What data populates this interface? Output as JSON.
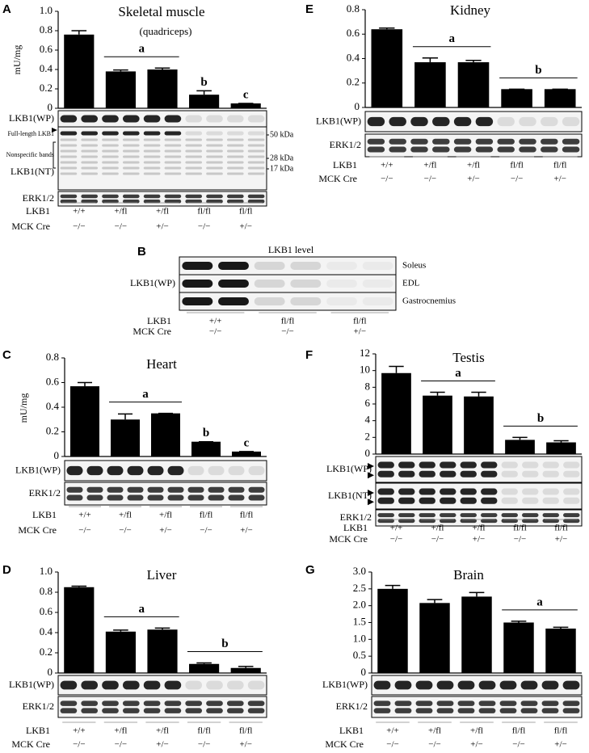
{
  "chart_data": [
    {
      "type": "bar",
      "panel": "A",
      "title": "Skeletal muscle",
      "subtitle": "(quadriceps)",
      "ylabel": "mU/mg",
      "color": "#000000",
      "values": [
        0.76,
        0.38,
        0.4,
        0.14,
        0.05
      ],
      "errors": [
        0.04,
        0.015,
        0.015,
        0.04,
        0
      ],
      "group_labels": [
        null,
        "a",
        "a",
        "b",
        "c"
      ],
      "ylim": [
        0,
        1
      ],
      "yticks": [
        0,
        0.2,
        0.4,
        0.6,
        0.8,
        {
          "value": 1,
          "label": "1.0"
        }
      ],
      "blots": [
        "LKB1(WP)",
        "LKB1(NT)",
        "ERK1/2"
      ],
      "blot_annotations": [
        "Full-length LKB1",
        "Nonspecific bands"
      ],
      "markers": [
        "50 kDa",
        "28 kDa",
        "17 kDa"
      ],
      "genotype_rows": [
        {
          "name": "LKB1",
          "values": [
            "+/+",
            "+/fl",
            "+/fl",
            "fl/fl",
            "fl/fl"
          ]
        },
        {
          "name": "MCK Cre",
          "values": [
            "−/−",
            "−/−",
            "+/−",
            "−/−",
            "+/−"
          ]
        }
      ]
    },
    {
      "type": "blot",
      "panel": "B",
      "title": "LKB1 level",
      "blots": [
        "LKB1(WP)"
      ],
      "tissues": [
        "Soleus",
        "EDL",
        "Gastrocnemius"
      ],
      "genotype_rows": [
        {
          "name": "LKB1",
          "values": [
            "+/+",
            "fl/fl",
            "fl/fl"
          ]
        },
        {
          "name": "MCK Cre",
          "values": [
            "−/−",
            "−/−",
            "+/−"
          ]
        }
      ]
    },
    {
      "type": "bar",
      "panel": "C",
      "title": "Heart",
      "ylabel": "mU/mg",
      "color": "#000000",
      "values": [
        0.57,
        0.3,
        0.35,
        0.12,
        0.04
      ],
      "errors": [
        0.03,
        0.045,
        0,
        0,
        0
      ],
      "group_labels": [
        null,
        "a",
        "a",
        "b",
        "c"
      ],
      "ylim": [
        0,
        0.8
      ],
      "yticks": [
        0,
        0.2,
        0.4,
        0.6,
        0.8
      ],
      "blots": [
        "LKB1(WP)",
        "ERK1/2"
      ],
      "genotype_rows": [
        {
          "name": "LKB1",
          "values": [
            "+/+",
            "+/fl",
            "+/fl",
            "fl/fl",
            "fl/fl"
          ]
        },
        {
          "name": "MCK Cre",
          "values": [
            "−/−",
            "−/−",
            "+/−",
            "−/−",
            "+/−"
          ]
        }
      ]
    },
    {
      "type": "bar",
      "panel": "D",
      "title": "Liver",
      "color": "#000000",
      "values": [
        0.85,
        0.41,
        0.43,
        0.09,
        0.05
      ],
      "errors": [
        0.01,
        0.015,
        0.015,
        0.01,
        0.015
      ],
      "group_labels": [
        null,
        "a",
        "a",
        "b",
        "b"
      ],
      "ylim": [
        0,
        1
      ],
      "yticks": [
        0,
        0.2,
        0.4,
        0.6,
        0.8,
        {
          "value": 1,
          "label": "1.0"
        }
      ],
      "blots": [
        "LKB1(WP)",
        "ERK1/2"
      ],
      "genotype_rows": [
        {
          "name": "LKB1",
          "values": [
            "+/+",
            "+/fl",
            "+/fl",
            "fl/fl",
            "fl/fl"
          ]
        },
        {
          "name": "MCK Cre",
          "values": [
            "−/−",
            "−/−",
            "+/−",
            "−/−",
            "+/−"
          ]
        }
      ]
    },
    {
      "type": "bar",
      "panel": "E",
      "title": "Kidney",
      "color": "#000000",
      "values": [
        0.64,
        0.37,
        0.37,
        0.15,
        0.15
      ],
      "errors": [
        0.01,
        0.035,
        0.015,
        0,
        0
      ],
      "group_labels": [
        null,
        "a",
        "a",
        "b",
        "b"
      ],
      "ylim": [
        0,
        0.8
      ],
      "yticks": [
        0,
        0.2,
        0.4,
        0.6,
        0.8
      ],
      "blots": [
        "LKB1(WP)",
        "ERK1/2"
      ],
      "genotype_rows": [
        {
          "name": "LKB1",
          "values": [
            "+/+",
            "+/fl",
            "+/fl",
            "fl/fl",
            "fl/fl"
          ]
        },
        {
          "name": "MCK Cre",
          "values": [
            "−/−",
            "−/−",
            "+/−",
            "−/−",
            "+/−"
          ]
        }
      ]
    },
    {
      "type": "bar",
      "panel": "F",
      "title": "Testis",
      "color": "#000000",
      "values": [
        9.7,
        7.0,
        6.9,
        1.7,
        1.4
      ],
      "errors": [
        0.8,
        0.4,
        0.5,
        0.3,
        0.2
      ],
      "group_labels": [
        null,
        "a",
        "a",
        "b",
        "b"
      ],
      "ylim": [
        0,
        12
      ],
      "yticks": [
        0,
        2,
        4,
        6,
        8,
        10,
        12
      ],
      "blots": [
        "LKB1(WP)",
        "LKB1(NT)",
        "ERK1/2"
      ],
      "genotype_rows": [
        {
          "name": "LKB1",
          "values": [
            "+/+",
            "+/fl",
            "+/fl",
            "fl/fl",
            "fl/fl"
          ]
        },
        {
          "name": "MCK Cre",
          "values": [
            "−/−",
            "−/−",
            "+/−",
            "−/−",
            "+/−"
          ]
        }
      ]
    },
    {
      "type": "bar",
      "panel": "G",
      "title": "Brain",
      "color": "#000000",
      "values": [
        2.5,
        2.08,
        2.27,
        1.5,
        1.32
      ],
      "errors": [
        0.1,
        0.1,
        0.12,
        0.04,
        0.04
      ],
      "group_labels": [
        null,
        null,
        null,
        "a",
        "a"
      ],
      "ylim": [
        0,
        3
      ],
      "yticks": [
        0,
        0.5,
        {
          "value": 1,
          "label": "1.0"
        },
        1.5,
        {
          "value": 2,
          "label": "2.0"
        },
        2.5,
        {
          "value": 3,
          "label": "3.0"
        }
      ],
      "blots": [
        "LKB1(WP)",
        "ERK1/2"
      ],
      "genotype_rows": [
        {
          "name": "LKB1",
          "values": [
            "+/+",
            "+/fl",
            "+/fl",
            "fl/fl",
            "fl/fl"
          ]
        },
        {
          "name": "MCK Cre",
          "values": [
            "−/−",
            "−/−",
            "+/−",
            "−/−",
            "+/−"
          ]
        }
      ]
    }
  ]
}
